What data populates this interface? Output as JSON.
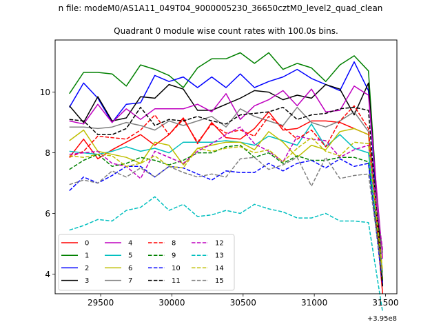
{
  "figure": {
    "suptitle": "n file: modeM0/AS1A11_049T04_9000005230_36650cztM0_level2_quad_clean",
    "offset_text": "+3.95e8"
  },
  "chart_data": {
    "type": "line",
    "title": "Quadrant 0 module wise count rates with 100.0s bins.",
    "xlabel": "",
    "ylabel": "",
    "xlim": [
      29180,
      31580
    ],
    "ylim": [
      3.35,
      11.72
    ],
    "xticks": [
      29500,
      30000,
      30500,
      31000,
      31500
    ],
    "xtick_labels": [
      "29500",
      "30000",
      "30500",
      "31000",
      "31500"
    ],
    "yticks": [
      4,
      6,
      8,
      10
    ],
    "ytick_labels": [
      "4",
      "6",
      "8",
      "10"
    ],
    "grid": false,
    "legend_position": "lower-left",
    "legend_columns": 4,
    "x": [
      29280,
      29380,
      29480,
      29580,
      29680,
      29780,
      29880,
      29980,
      30080,
      30180,
      30280,
      30380,
      30480,
      30580,
      30680,
      30780,
      30880,
      30980,
      31080,
      31180,
      31280,
      31380,
      31480
    ],
    "series": [
      {
        "name": "0",
        "color": "#ff0000",
        "style": "solid",
        "values": [
          7.85,
          8.45,
          7.8,
          8.1,
          8.35,
          8.6,
          8.25,
          8.6,
          9.15,
          8.3,
          9.0,
          8.5,
          8.45,
          8.8,
          9.35,
          8.75,
          8.8,
          9.05,
          9.05,
          9.0,
          8.8,
          8.6,
          3.35
        ]
      },
      {
        "name": "1",
        "color": "#008000",
        "style": "solid",
        "values": [
          9.95,
          10.65,
          10.65,
          10.6,
          10.2,
          10.9,
          10.75,
          10.55,
          10.15,
          10.8,
          11.1,
          11.1,
          11.3,
          10.95,
          11.3,
          10.75,
          10.95,
          10.8,
          10.35,
          10.9,
          11.2,
          10.7,
          3.7
        ]
      },
      {
        "name": "2",
        "color": "#0000ff",
        "style": "solid",
        "values": [
          9.5,
          10.3,
          9.8,
          9.0,
          9.6,
          9.65,
          10.55,
          10.35,
          10.5,
          10.15,
          10.5,
          10.15,
          10.6,
          10.15,
          10.35,
          10.5,
          10.75,
          10.45,
          10.25,
          10.05,
          11.0,
          10.05,
          3.7
        ]
      },
      {
        "name": "3",
        "color": "#000000",
        "style": "solid",
        "values": [
          9.55,
          9.0,
          9.85,
          9.05,
          9.15,
          9.85,
          9.8,
          10.25,
          10.1,
          9.4,
          9.4,
          9.6,
          9.8,
          10.05,
          10.0,
          9.75,
          9.9,
          9.8,
          10.25,
          10.1,
          9.25,
          10.3,
          3.85
        ]
      },
      {
        "name": "4",
        "color": "#bf00bf",
        "style": "solid",
        "values": [
          9.05,
          8.95,
          9.6,
          9.0,
          9.45,
          9.1,
          9.45,
          9.45,
          9.45,
          9.6,
          9.35,
          9.95,
          9.1,
          9.55,
          9.75,
          10.05,
          9.55,
          10.1,
          9.35,
          9.4,
          10.2,
          9.9,
          4.5
        ]
      },
      {
        "name": "5",
        "color": "#00bfbf",
        "style": "solid",
        "values": [
          8.05,
          8.0,
          7.95,
          8.05,
          8.2,
          8.05,
          8.15,
          8.0,
          8.35,
          8.35,
          8.35,
          8.4,
          8.35,
          8.25,
          8.55,
          8.4,
          8.25,
          8.95,
          8.2,
          8.6,
          8.15,
          8.0,
          4.05
        ]
      },
      {
        "name": "6",
        "color": "#bfbf00",
        "style": "solid",
        "values": [
          8.4,
          8.75,
          8.05,
          7.95,
          7.85,
          7.65,
          8.35,
          8.25,
          7.6,
          8.15,
          8.25,
          8.35,
          8.35,
          8.1,
          8.7,
          8.35,
          7.85,
          8.25,
          8.1,
          8.7,
          8.8,
          8.6,
          3.85
        ]
      },
      {
        "name": "7",
        "color": "#808080",
        "style": "solid",
        "values": [
          8.85,
          8.85,
          8.8,
          8.85,
          9.0,
          8.9,
          8.75,
          9.05,
          8.9,
          9.05,
          9.2,
          8.85,
          9.45,
          9.2,
          9.05,
          8.9,
          9.5,
          9.0,
          8.85,
          9.05,
          9.35,
          8.7,
          4.7
        ]
      },
      {
        "name": "8",
        "color": "#ff0000",
        "style": "dashed",
        "values": [
          7.85,
          8.05,
          8.55,
          8.5,
          8.45,
          8.75,
          9.25,
          8.6,
          9.1,
          8.35,
          8.95,
          8.65,
          8.75,
          8.55,
          9.2,
          8.85,
          8.45,
          8.75,
          8.2,
          9.05,
          9.55,
          8.8,
          3.6
        ]
      },
      {
        "name": "9",
        "color": "#008000",
        "style": "dashed",
        "values": [
          7.45,
          7.75,
          7.95,
          7.55,
          7.65,
          7.85,
          7.75,
          7.6,
          7.75,
          8.0,
          8.0,
          8.2,
          8.25,
          7.85,
          8.0,
          7.65,
          7.9,
          7.75,
          7.75,
          7.85,
          7.85,
          7.7,
          3.75
        ]
      },
      {
        "name": "10",
        "color": "#0000ff",
        "style": "dashed",
        "values": [
          6.75,
          7.2,
          7.0,
          7.25,
          7.55,
          7.55,
          7.2,
          7.55,
          7.5,
          7.3,
          7.1,
          7.4,
          7.35,
          7.35,
          7.65,
          7.4,
          7.65,
          7.75,
          7.5,
          7.8,
          7.55,
          7.65,
          3.6
        ]
      },
      {
        "name": "11",
        "color": "#000000",
        "style": "dashed",
        "values": [
          9.1,
          9.05,
          8.6,
          8.6,
          8.8,
          9.5,
          8.9,
          9.1,
          9.05,
          9.2,
          9.05,
          8.95,
          9.25,
          9.3,
          9.35,
          9.5,
          9.1,
          9.25,
          9.3,
          9.45,
          9.5,
          9.4,
          3.55
        ]
      },
      {
        "name": "12",
        "color": "#bf00bf",
        "style": "dashed",
        "values": [
          7.95,
          8.0,
          8.05,
          7.65,
          7.55,
          7.15,
          8.05,
          7.85,
          7.65,
          8.05,
          8.3,
          8.6,
          8.85,
          8.3,
          8.05,
          7.7,
          8.55,
          8.45,
          8.4,
          7.85,
          8.1,
          8.25,
          4.8
        ]
      },
      {
        "name": "13",
        "color": "#00bfbf",
        "style": "dashed",
        "values": [
          5.45,
          5.6,
          5.8,
          5.75,
          6.1,
          6.2,
          6.55,
          6.1,
          6.3,
          5.9,
          5.95,
          6.1,
          6.0,
          6.3,
          6.15,
          6.05,
          5.85,
          5.85,
          6.0,
          5.75,
          5.75,
          5.7,
          2.75
        ]
      },
      {
        "name": "14",
        "color": "#bfbf00",
        "style": "dashed",
        "values": [
          7.9,
          7.85,
          7.95,
          7.9,
          7.55,
          7.65,
          7.9,
          7.55,
          7.5,
          8.15,
          8.05,
          8.15,
          8.2,
          8.0,
          8.1,
          7.7,
          8.15,
          8.5,
          8.05,
          7.9,
          8.35,
          8.3,
          4.1
        ]
      },
      {
        "name": "15",
        "color": "#808080",
        "style": "dashed",
        "values": [
          6.95,
          7.1,
          7.0,
          7.4,
          7.2,
          7.5,
          7.2,
          7.55,
          7.35,
          7.2,
          7.3,
          7.2,
          7.8,
          7.85,
          7.45,
          7.6,
          7.85,
          6.9,
          7.85,
          7.15,
          7.25,
          7.3,
          3.9
        ]
      }
    ]
  }
}
